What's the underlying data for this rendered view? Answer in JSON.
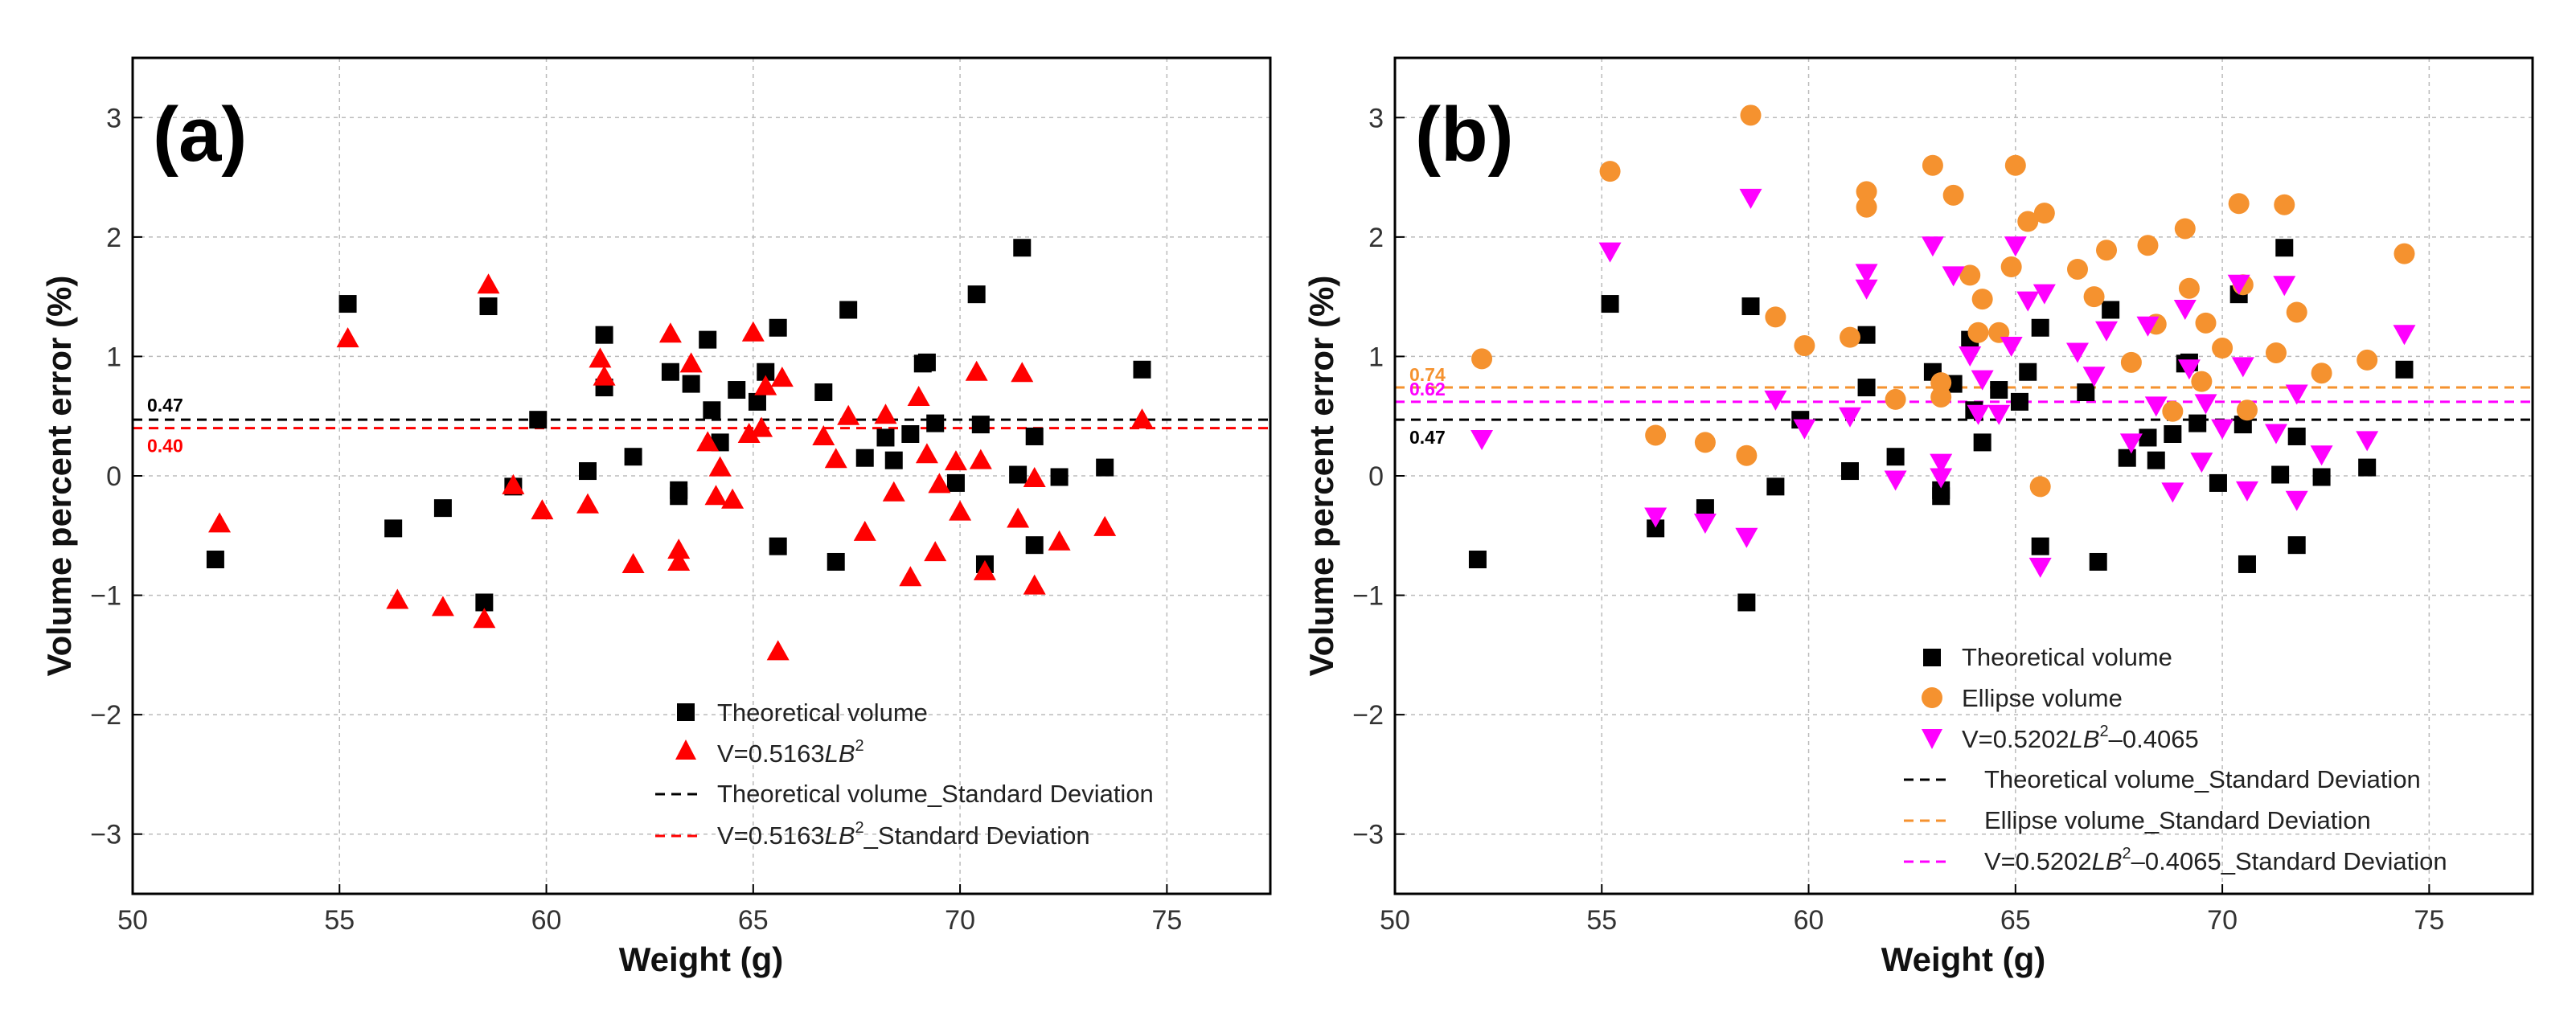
{
  "chart_data": [
    {
      "type": "scatter",
      "panel_label": "(a)",
      "xlabel": "Weight (g)",
      "ylabel": "Volume percent error (%)",
      "xlim": [
        50,
        77.5
      ],
      "ylim": [
        -3.5,
        3.5
      ],
      "x_ticks": [
        "50",
        "55",
        "60",
        "65",
        "70",
        "75"
      ],
      "y_ticks": [
        "−3",
        "−2",
        "−1",
        "0",
        "1",
        "2",
        "3"
      ],
      "grid": true,
      "legend_position": "bottom-right",
      "series": [
        {
          "name": "Theoretical volume",
          "marker": "square",
          "color": "#000000",
          "points": [
            [
              52.0,
              -0.7
            ],
            [
              55.2,
              1.44
            ],
            [
              56.3,
              -0.44
            ],
            [
              57.5,
              -0.27
            ],
            [
              58.5,
              -1.06
            ],
            [
              58.6,
              1.42
            ],
            [
              59.2,
              -0.09
            ],
            [
              59.8,
              0.47
            ],
            [
              61.0,
              0.04
            ],
            [
              61.4,
              1.18
            ],
            [
              61.4,
              0.74
            ],
            [
              62.1,
              0.16
            ],
            [
              63.0,
              0.87
            ],
            [
              63.2,
              -0.17
            ],
            [
              63.2,
              -0.12
            ],
            [
              63.5,
              0.77
            ],
            [
              63.9,
              1.14
            ],
            [
              64.0,
              0.55
            ],
            [
              64.2,
              0.28
            ],
            [
              64.6,
              0.72
            ],
            [
              65.1,
              0.62
            ],
            [
              65.3,
              0.87
            ],
            [
              65.6,
              -0.59
            ],
            [
              65.6,
              1.24
            ],
            [
              66.7,
              0.7
            ],
            [
              67.0,
              -0.72
            ],
            [
              67.3,
              1.39
            ],
            [
              67.7,
              0.15
            ],
            [
              68.2,
              0.32
            ],
            [
              68.4,
              0.13
            ],
            [
              68.8,
              0.35
            ],
            [
              69.1,
              0.94
            ],
            [
              69.2,
              0.95
            ],
            [
              69.4,
              0.44
            ],
            [
              69.9,
              -0.06
            ],
            [
              70.4,
              1.52
            ],
            [
              70.5,
              0.43
            ],
            [
              70.6,
              -0.74
            ],
            [
              71.4,
              0.01
            ],
            [
              71.5,
              1.91
            ],
            [
              71.8,
              0.33
            ],
            [
              71.8,
              -0.58
            ],
            [
              72.4,
              -0.01
            ],
            [
              73.5,
              0.07
            ],
            [
              74.4,
              0.89
            ]
          ]
        },
        {
          "name": "V=0.5163LB²",
          "marker": "triangle-up",
          "color": "#ff0000",
          "points": [
            [
              52.1,
              -0.4
            ],
            [
              55.2,
              1.15
            ],
            [
              56.4,
              -1.04
            ],
            [
              57.5,
              -1.1
            ],
            [
              58.5,
              -1.2
            ],
            [
              58.6,
              1.6
            ],
            [
              59.2,
              -0.08
            ],
            [
              59.9,
              -0.29
            ],
            [
              61.0,
              -0.24
            ],
            [
              61.3,
              0.98
            ],
            [
              61.4,
              0.83
            ],
            [
              62.1,
              -0.74
            ],
            [
              63.0,
              1.19
            ],
            [
              63.2,
              -0.72
            ],
            [
              63.2,
              -0.62
            ],
            [
              63.5,
              0.94
            ],
            [
              63.9,
              0.28
            ],
            [
              64.1,
              -0.17
            ],
            [
              64.2,
              0.07
            ],
            [
              64.5,
              -0.2
            ],
            [
              64.9,
              0.35
            ],
            [
              65.0,
              1.2
            ],
            [
              65.2,
              0.4
            ],
            [
              65.3,
              0.75
            ],
            [
              65.6,
              -1.47
            ],
            [
              65.7,
              0.82
            ],
            [
              66.7,
              0.33
            ],
            [
              67.0,
              0.14
            ],
            [
              67.3,
              0.5
            ],
            [
              67.7,
              -0.47
            ],
            [
              68.2,
              0.51
            ],
            [
              68.4,
              -0.14
            ],
            [
              68.8,
              -0.85
            ],
            [
              69.0,
              0.66
            ],
            [
              69.2,
              0.18
            ],
            [
              69.4,
              -0.64
            ],
            [
              69.5,
              -0.07
            ],
            [
              69.9,
              0.12
            ],
            [
              70.0,
              -0.3
            ],
            [
              70.4,
              0.87
            ],
            [
              70.5,
              0.13
            ],
            [
              70.6,
              -0.8
            ],
            [
              71.4,
              -0.36
            ],
            [
              71.5,
              0.86
            ],
            [
              71.8,
              -0.02
            ],
            [
              71.8,
              -0.92
            ],
            [
              72.4,
              -0.55
            ],
            [
              73.5,
              -0.43
            ],
            [
              74.4,
              0.47
            ]
          ]
        }
      ],
      "std_lines": [
        {
          "name": "Theoretical volume_Standard Deviation",
          "value": 0.47,
          "label": "0.47",
          "color": "#000000"
        },
        {
          "name": "V=0.5163LB²_Standard Deviation",
          "value": 0.4,
          "label": "0.40",
          "color": "#ff0000"
        }
      ]
    },
    {
      "type": "scatter",
      "panel_label": "(b)",
      "xlabel": "Weight (g)",
      "ylabel": "Volume percent error (%)",
      "xlim": [
        50,
        77.5
      ],
      "ylim": [
        -3.5,
        3.5
      ],
      "x_ticks": [
        "50",
        "55",
        "60",
        "65",
        "70",
        "75"
      ],
      "y_ticks": [
        "−3",
        "−2",
        "−1",
        "0",
        "1",
        "2",
        "3"
      ],
      "grid": true,
      "legend_position": "bottom-right",
      "series": [
        {
          "name": "Theoretical volume",
          "marker": "square",
          "color": "#000000",
          "points": [
            [
              52.0,
              -0.7
            ],
            [
              55.2,
              1.44
            ],
            [
              56.3,
              -0.44
            ],
            [
              57.5,
              -0.27
            ],
            [
              58.5,
              -1.06
            ],
            [
              58.6,
              1.42
            ],
            [
              59.2,
              -0.09
            ],
            [
              59.8,
              0.47
            ],
            [
              61.0,
              0.04
            ],
            [
              61.4,
              1.18
            ],
            [
              61.4,
              0.74
            ],
            [
              62.1,
              0.16
            ],
            [
              63.0,
              0.87
            ],
            [
              63.2,
              -0.17
            ],
            [
              63.2,
              -0.12
            ],
            [
              63.5,
              0.77
            ],
            [
              63.9,
              1.14
            ],
            [
              64.0,
              0.55
            ],
            [
              64.2,
              0.28
            ],
            [
              64.6,
              0.72
            ],
            [
              65.1,
              0.62
            ],
            [
              65.3,
              0.87
            ],
            [
              65.6,
              -0.59
            ],
            [
              65.6,
              1.24
            ],
            [
              66.7,
              0.7
            ],
            [
              67.0,
              -0.72
            ],
            [
              67.3,
              1.39
            ],
            [
              67.7,
              0.15
            ],
            [
              68.2,
              0.32
            ],
            [
              68.4,
              0.13
            ],
            [
              68.8,
              0.35
            ],
            [
              69.1,
              0.94
            ],
            [
              69.2,
              0.95
            ],
            [
              69.4,
              0.44
            ],
            [
              69.9,
              -0.06
            ],
            [
              70.4,
              1.52
            ],
            [
              70.5,
              0.43
            ],
            [
              70.6,
              -0.74
            ],
            [
              71.4,
              0.01
            ],
            [
              71.5,
              1.91
            ],
            [
              71.8,
              0.33
            ],
            [
              71.8,
              -0.58
            ],
            [
              72.4,
              -0.01
            ],
            [
              73.5,
              0.07
            ],
            [
              74.4,
              0.89
            ]
          ]
        },
        {
          "name": "Ellipse volume",
          "marker": "circle",
          "color": "#f5922f",
          "points": [
            [
              52.1,
              0.98
            ],
            [
              55.2,
              2.55
            ],
            [
              56.3,
              0.34
            ],
            [
              57.5,
              0.28
            ],
            [
              58.5,
              0.17
            ],
            [
              58.6,
              3.02
            ],
            [
              59.2,
              1.33
            ],
            [
              59.9,
              1.09
            ],
            [
              61.0,
              1.16
            ],
            [
              61.4,
              2.38
            ],
            [
              61.4,
              2.25
            ],
            [
              62.1,
              0.64
            ],
            [
              63.0,
              2.6
            ],
            [
              63.2,
              0.78
            ],
            [
              63.2,
              0.66
            ],
            [
              63.5,
              2.35
            ],
            [
              63.9,
              1.68
            ],
            [
              64.1,
              1.2
            ],
            [
              64.2,
              1.48
            ],
            [
              64.6,
              1.2
            ],
            [
              64.9,
              1.75
            ],
            [
              65.0,
              2.6
            ],
            [
              65.3,
              2.13
            ],
            [
              65.6,
              -0.09
            ],
            [
              65.7,
              2.2
            ],
            [
              66.5,
              1.73
            ],
            [
              66.9,
              1.5
            ],
            [
              67.2,
              1.89
            ],
            [
              67.8,
              0.95
            ],
            [
              68.2,
              1.93
            ],
            [
              68.4,
              1.27
            ],
            [
              68.8,
              0.54
            ],
            [
              69.1,
              2.07
            ],
            [
              69.2,
              1.57
            ],
            [
              69.5,
              0.79
            ],
            [
              69.6,
              1.28
            ],
            [
              70.0,
              1.07
            ],
            [
              70.4,
              2.28
            ],
            [
              70.5,
              1.6
            ],
            [
              70.6,
              0.55
            ],
            [
              71.3,
              1.03
            ],
            [
              71.5,
              2.27
            ],
            [
              71.8,
              1.37
            ],
            [
              72.4,
              0.86
            ],
            [
              73.5,
              0.97
            ],
            [
              74.4,
              1.86
            ]
          ]
        },
        {
          "name": "V=0.5202LB²–0.4065",
          "marker": "triangle-down",
          "color": "#ff00ff",
          "points": [
            [
              52.1,
              0.31
            ],
            [
              55.2,
              1.88
            ],
            [
              56.3,
              -0.34
            ],
            [
              57.5,
              -0.39
            ],
            [
              58.5,
              -0.51
            ],
            [
              58.6,
              2.33
            ],
            [
              59.2,
              0.64
            ],
            [
              59.9,
              0.4
            ],
            [
              61.0,
              0.5
            ],
            [
              61.4,
              1.7
            ],
            [
              61.4,
              1.57
            ],
            [
              62.1,
              -0.03
            ],
            [
              63.0,
              1.93
            ],
            [
              63.2,
              0.11
            ],
            [
              63.2,
              -0.01
            ],
            [
              63.5,
              1.68
            ],
            [
              63.9,
              1.01
            ],
            [
              64.1,
              0.52
            ],
            [
              64.2,
              0.81
            ],
            [
              64.6,
              0.52
            ],
            [
              64.9,
              1.09
            ],
            [
              65.0,
              1.93
            ],
            [
              65.3,
              1.47
            ],
            [
              65.6,
              -0.76
            ],
            [
              65.7,
              1.53
            ],
            [
              66.5,
              1.04
            ],
            [
              66.9,
              0.84
            ],
            [
              67.2,
              1.22
            ],
            [
              67.8,
              0.28
            ],
            [
              68.2,
              1.26
            ],
            [
              68.4,
              0.59
            ],
            [
              68.8,
              -0.13
            ],
            [
              69.1,
              1.4
            ],
            [
              69.2,
              0.9
            ],
            [
              69.5,
              0.12
            ],
            [
              69.6,
              0.61
            ],
            [
              70.0,
              0.4
            ],
            [
              70.4,
              1.61
            ],
            [
              70.5,
              0.92
            ],
            [
              70.6,
              -0.12
            ],
            [
              71.3,
              0.36
            ],
            [
              71.5,
              1.6
            ],
            [
              71.8,
              0.69
            ],
            [
              71.8,
              -0.2
            ],
            [
              72.4,
              0.18
            ],
            [
              73.5,
              0.3
            ],
            [
              74.4,
              1.19
            ]
          ]
        }
      ],
      "std_lines": [
        {
          "name": "Theoretical volume_Standard Deviation",
          "value": 0.47,
          "label": "0.47",
          "color": "#000000"
        },
        {
          "name": "Ellipse volume_Standard Deviation",
          "value": 0.74,
          "label": "0.74",
          "color": "#f5922f"
        },
        {
          "name": "V=0.5202LB²–0.4065_Standard Deviation",
          "value": 0.62,
          "label": "0.62",
          "color": "#ff00ff"
        }
      ]
    }
  ],
  "legend_a": {
    "theoretical": "Theoretical volume",
    "model_prefix": "V=0.5163",
    "model_lb": "LB",
    "model_exp": "2",
    "theoretical_sd": "Theoretical volume_Standard Deviation",
    "model_sd_suffix": "_Standard Deviation"
  },
  "legend_b": {
    "theoretical": "Theoretical volume",
    "ellipse": "Ellipse volume",
    "model_prefix": "V=0.5202",
    "model_lb": "LB",
    "model_exp": "2",
    "model_suffix": "–0.4065",
    "theoretical_sd": "Theoretical volume_Standard Deviation",
    "ellipse_sd": "Ellipse volume_Standard Deviation",
    "model_sd_suffix": "–0.4065_Standard Deviation"
  }
}
